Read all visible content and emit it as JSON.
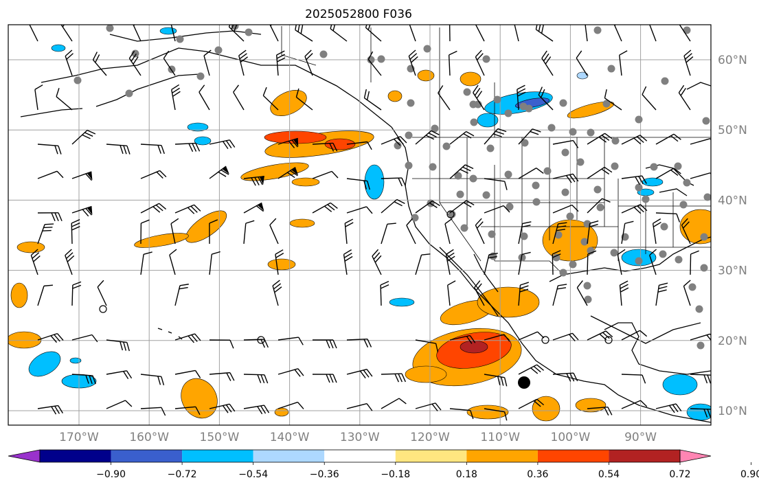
{
  "title": "2025052800 F036",
  "map": {
    "lat_labels": [
      "10°N",
      "20°N",
      "30°N",
      "40°N",
      "50°N",
      "60°N"
    ],
    "lon_labels": [
      "170°W",
      "160°W",
      "150°W",
      "140°W",
      "130°W",
      "120°W",
      "110°W",
      "100°W",
      "90°W"
    ],
    "grid": true,
    "grid_color": "#a0a0a0",
    "land_outline_color": "#000000",
    "station_color": "#808080",
    "barb_color": "#000000"
  },
  "colorbar": {
    "tick_labels": [
      "−0.90",
      "−0.72",
      "−0.54",
      "−0.36",
      "−0.18",
      "0.18",
      "0.36",
      "0.54",
      "0.72",
      "0.90"
    ],
    "colors": [
      "#9932cc",
      "#00008b",
      "#3a5fcd",
      "#00bfff",
      "#add8ff",
      "#ffffff",
      "#ffe680",
      "#ffa500",
      "#ff4500",
      "#b22222",
      "#ff85b3"
    ],
    "extend": "both"
  },
  "colors": {
    "neg_light": "#add8ff",
    "neg_mid": "#00bfff",
    "neg_strong": "#3a5fcd",
    "pos_light": "#ffe680",
    "pos_mid": "#ffa500",
    "pos_strong": "#ff4500",
    "pos_max": "#b22222"
  }
}
